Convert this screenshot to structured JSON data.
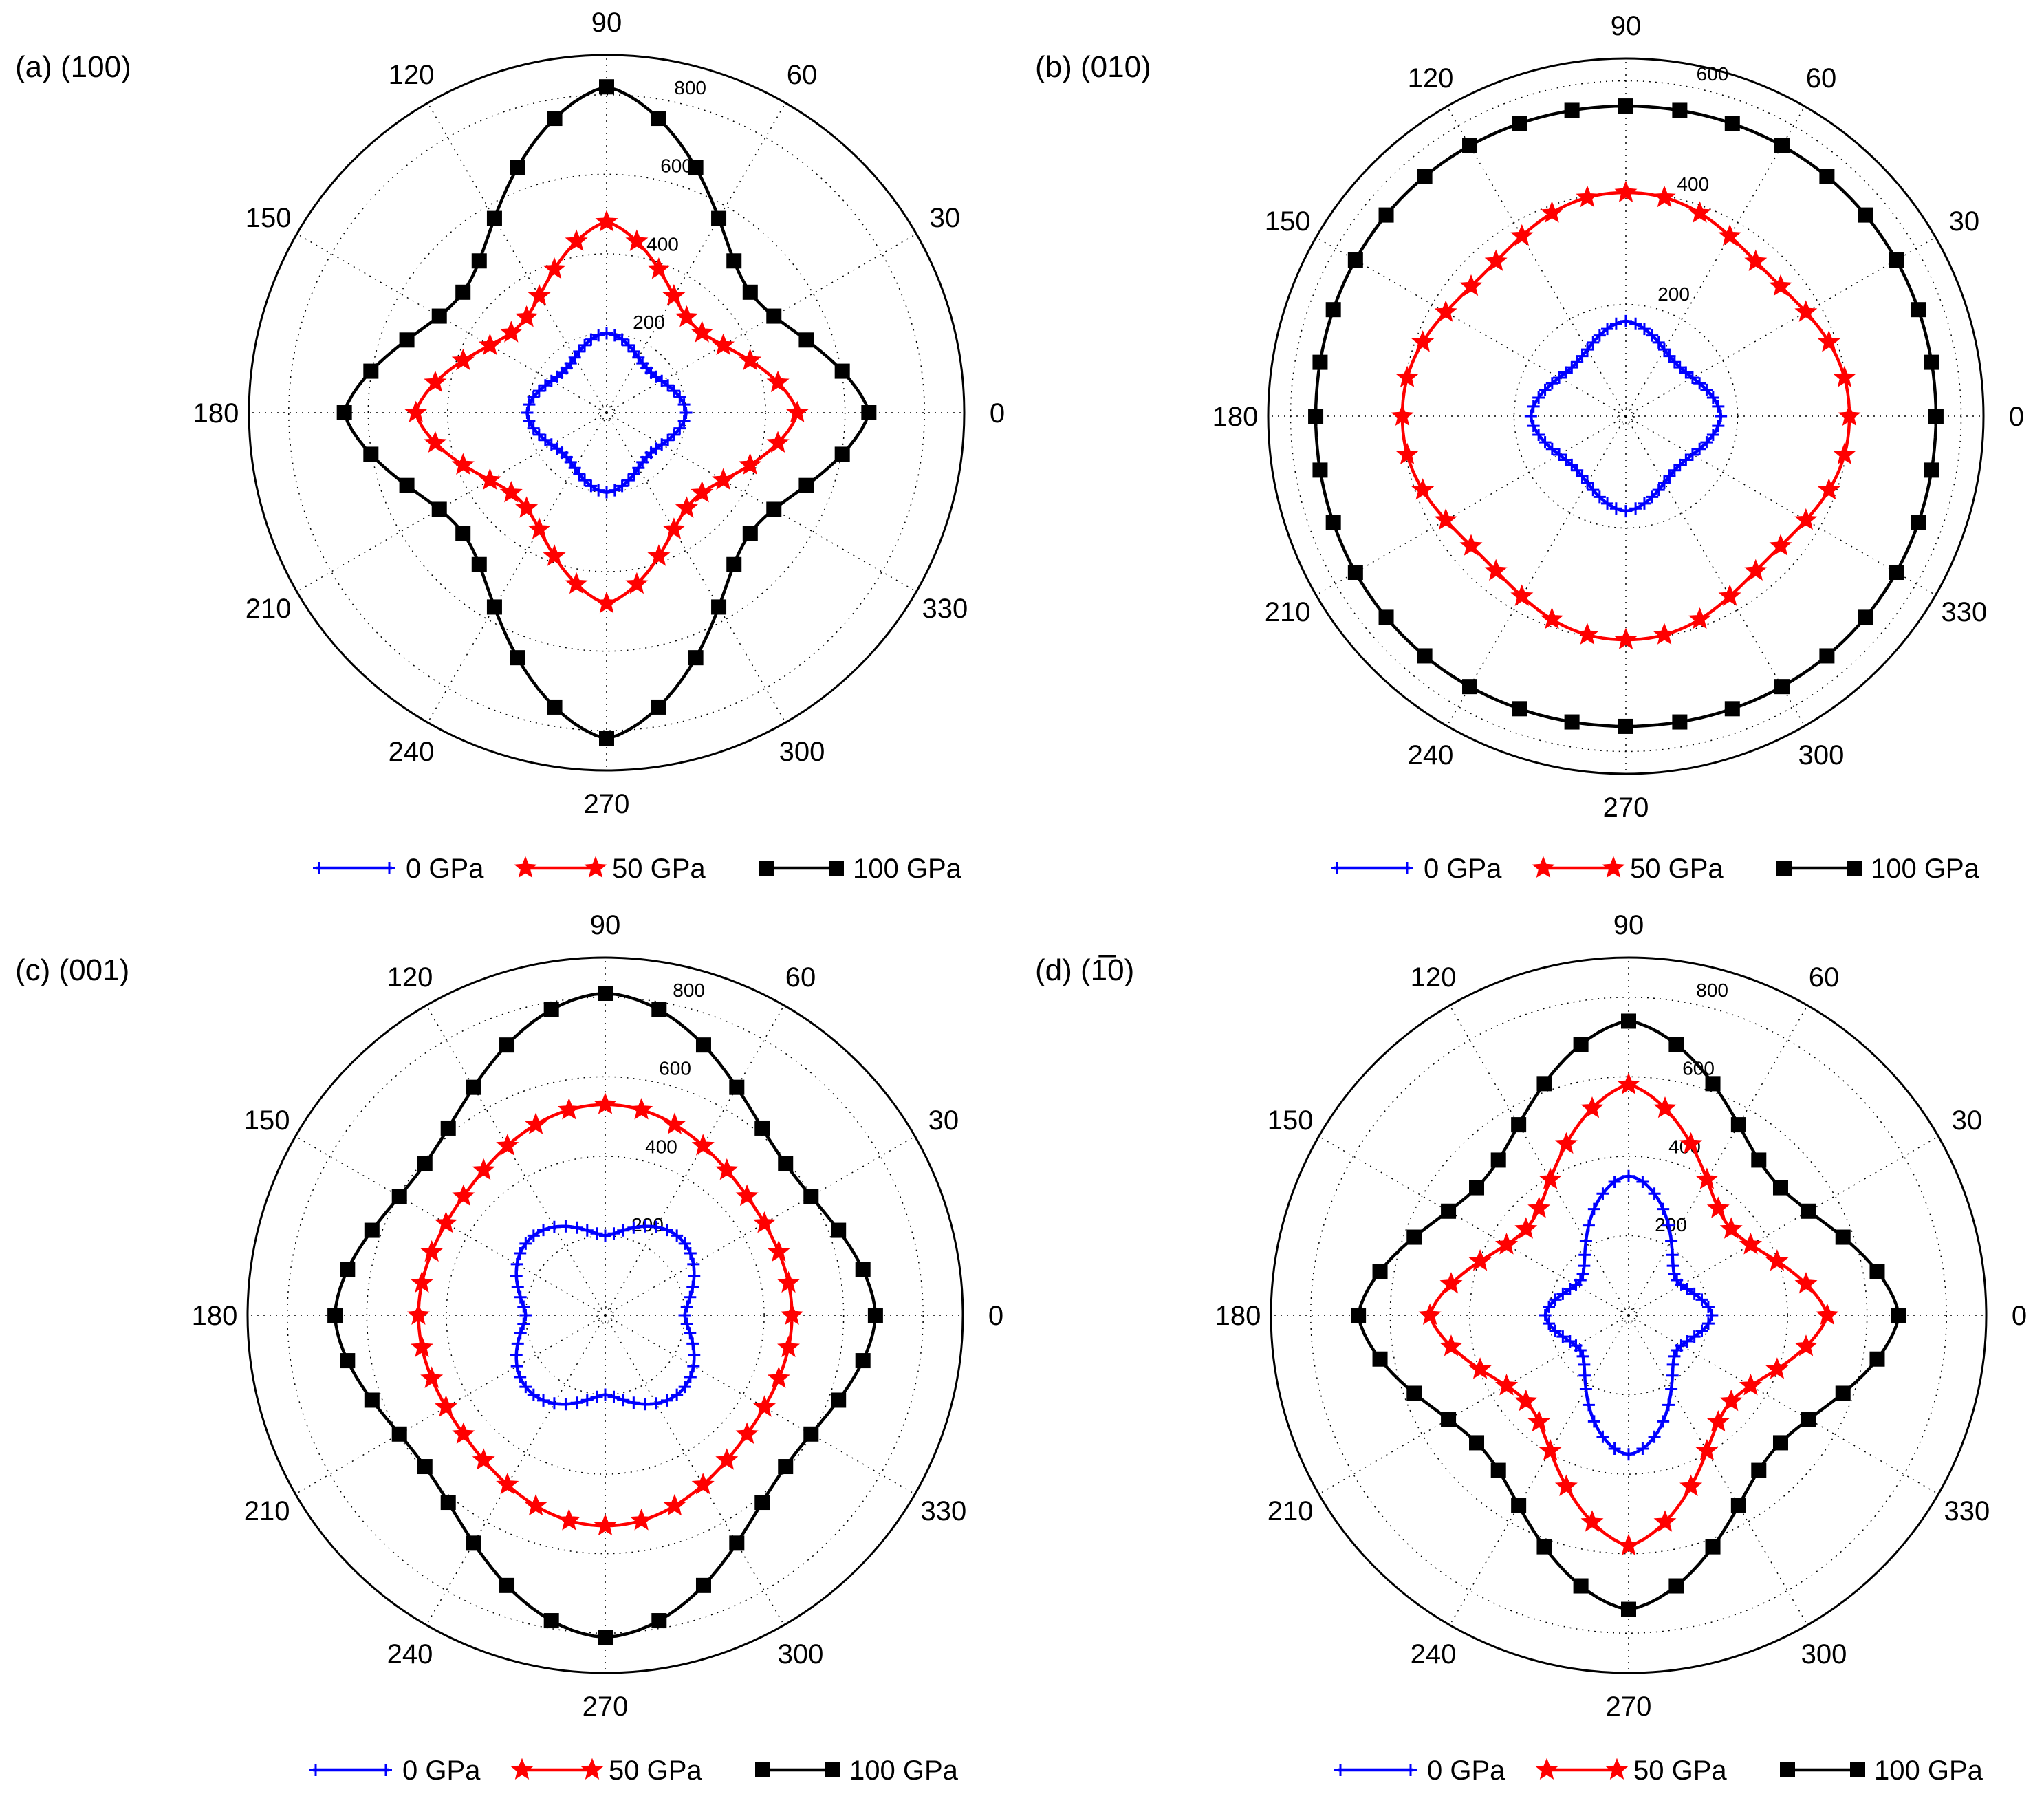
{
  "colors": {
    "0 GPa": "#0000ff",
    "50 GPa": "#ff0000",
    "100 GPa": "#000000"
  },
  "legend": [
    "0 GPa",
    "50 GPa",
    "100 GPa"
  ],
  "chart_data": [
    {
      "type": "polar-line",
      "panel_label": "(a) (100)",
      "theta_ticks": [
        0,
        30,
        60,
        90,
        120,
        150,
        180,
        210,
        240,
        270,
        300,
        330
      ],
      "r_ticks": [
        200,
        400,
        600,
        800
      ],
      "r_max": 900,
      "grid": true,
      "legend": "bottom",
      "series": [
        {
          "name": "0 GPa",
          "marker": "plus",
          "profile": {
            "r0": 200,
            "r90": 200,
            "r45": 150,
            "e": 1.6
          }
        },
        {
          "name": "50 GPa",
          "marker": "star",
          "profile": {
            "r0": 480,
            "r90": 480,
            "r45": 310,
            "e": 1.3
          }
        },
        {
          "name": "100 GPa",
          "marker": "square",
          "profile": {
            "r0": 660,
            "r90": 820,
            "r45": 480,
            "e": 1.3
          }
        }
      ]
    },
    {
      "type": "polar-line",
      "panel_label": "(b) (010)",
      "theta_ticks": [
        0,
        30,
        60,
        90,
        120,
        150,
        180,
        210,
        240,
        270,
        300,
        330
      ],
      "r_ticks": [
        200,
        400,
        600
      ],
      "r_max": 640,
      "grid": true,
      "legend": "bottom",
      "series": [
        {
          "name": "0 GPa",
          "marker": "plus",
          "profile": {
            "r0": 170,
            "r90": 170,
            "r45": 130,
            "e": 1.5
          }
        },
        {
          "name": "50 GPa",
          "marker": "star",
          "profile": {
            "r0": 400,
            "r90": 400,
            "r45": 360,
            "e": 2.5
          }
        },
        {
          "name": "100 GPa",
          "marker": "square",
          "profile": {
            "r0": 555,
            "r90": 555,
            "r45": 560,
            "e": 2.0
          }
        }
      ]
    },
    {
      "type": "polar-line",
      "panel_label": "(c) (001)",
      "theta_ticks": [
        0,
        30,
        60,
        90,
        120,
        150,
        180,
        210,
        240,
        270,
        300,
        330
      ],
      "r_ticks": [
        200,
        400,
        600,
        800
      ],
      "r_max": 900,
      "grid": true,
      "legend": "bottom",
      "series": [
        {
          "name": "0 GPa",
          "marker": "plus",
          "profile": {
            "r0": 200,
            "r90": 200,
            "r45": 270,
            "e": 1.5
          }
        },
        {
          "name": "50 GPa",
          "marker": "star",
          "profile": {
            "r0": 470,
            "r90": 530,
            "r45": 470,
            "e": 2.0
          }
        },
        {
          "name": "100 GPa",
          "marker": "square",
          "profile": {
            "r0": 680,
            "r90": 810,
            "r45": 600,
            "e": 1.6
          }
        }
      ]
    },
    {
      "type": "polar-line",
      "panel_label": "(d) (1̅0)",
      "theta_ticks": [
        0,
        30,
        60,
        90,
        120,
        150,
        180,
        210,
        240,
        270,
        300,
        330
      ],
      "r_ticks": [
        200,
        400,
        600,
        800
      ],
      "r_max": 900,
      "grid": true,
      "legend": "bottom",
      "series": [
        {
          "name": "0 GPa",
          "marker": "plus",
          "profile": {
            "r0": 210,
            "r90": 350,
            "r45": 160,
            "e": 1.5
          }
        },
        {
          "name": "50 GPa",
          "marker": "star",
          "profile": {
            "r0": 500,
            "r90": 580,
            "r45": 340,
            "e": 1.3
          }
        },
        {
          "name": "100 GPa",
          "marker": "square",
          "profile": {
            "r0": 680,
            "r90": 740,
            "r45": 500,
            "e": 1.4
          }
        }
      ]
    }
  ]
}
